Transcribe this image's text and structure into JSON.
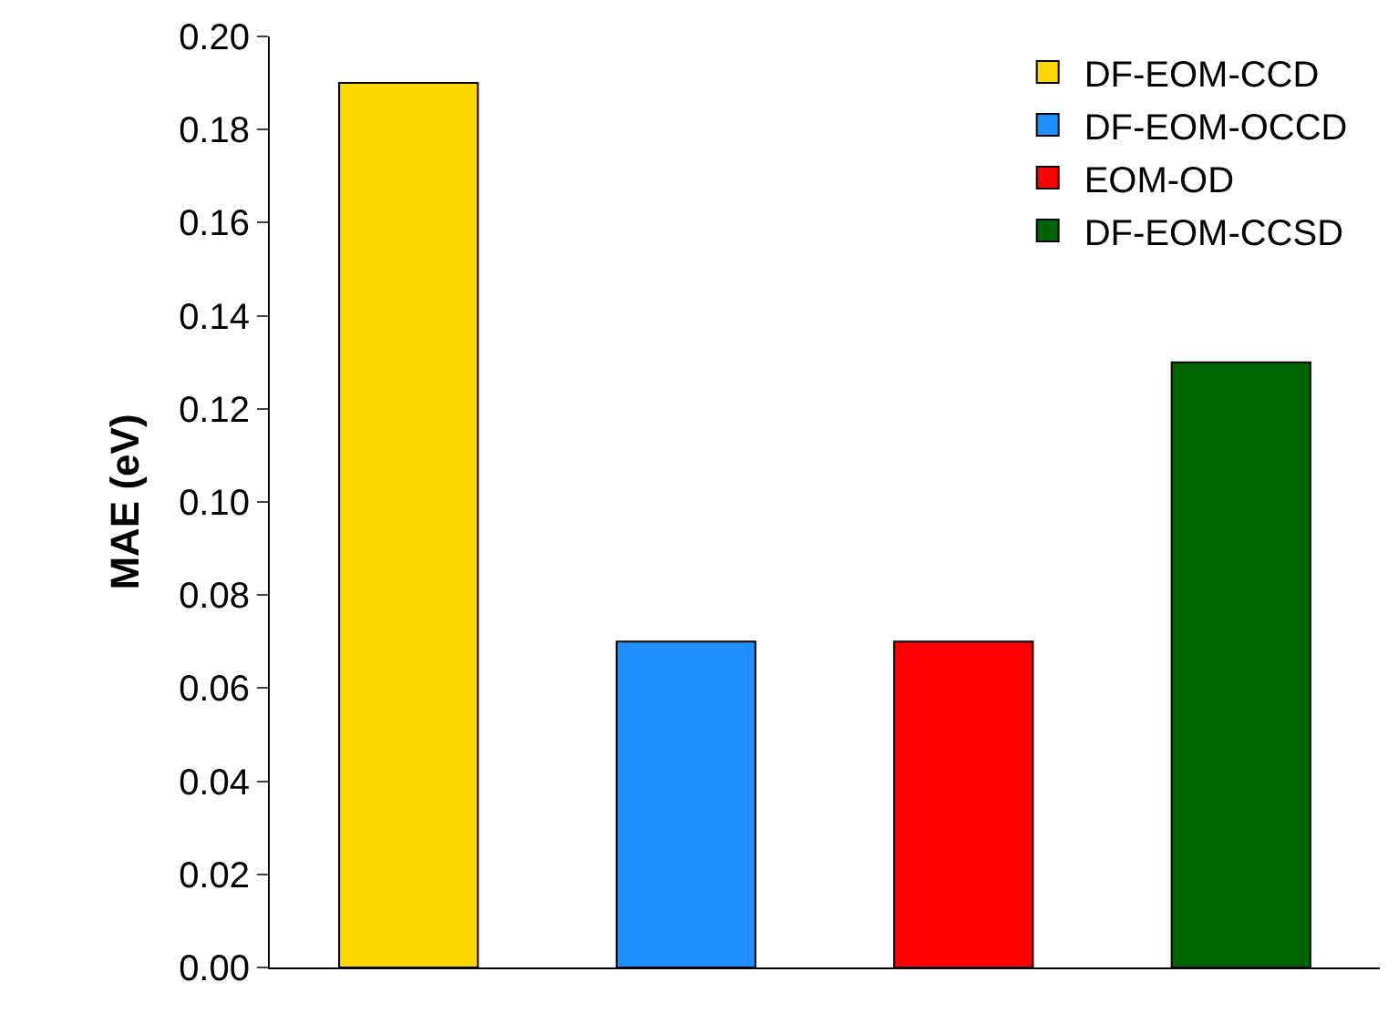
{
  "chart_data": {
    "type": "bar",
    "ylabel": "MAE (eV)",
    "categories": [
      null,
      null,
      null,
      null
    ],
    "series": [
      {
        "name": "DF-EOM-CCD",
        "color": "#ffd700",
        "values": [
          0.19,
          null,
          null,
          null
        ]
      },
      {
        "name": "DF-EOM-OCCD",
        "color": "#1e90ff",
        "values": [
          null,
          0.07,
          null,
          null
        ]
      },
      {
        "name": "EOM-OD",
        "color": "#ff0000",
        "values": [
          null,
          null,
          0.07,
          null
        ]
      },
      {
        "name": "DF-EOM-CCSD",
        "color": "#006400",
        "values": [
          null,
          null,
          null,
          0.13
        ]
      }
    ],
    "ylim": [
      0,
      0.2
    ],
    "yticks": [
      {
        "value": 0,
        "label": "0.00"
      },
      {
        "value": 0.02,
        "label": "0.02"
      },
      {
        "value": 0.04,
        "label": "0.04"
      },
      {
        "value": 0.06,
        "label": "0.06"
      },
      {
        "value": 0.08,
        "label": "0.08"
      },
      {
        "value": 0.1,
        "label": "0.10"
      },
      {
        "value": 0.12,
        "label": "0.12"
      },
      {
        "value": 0.14,
        "label": "0.14"
      },
      {
        "value": 0.16,
        "label": "0.16"
      },
      {
        "value": 0.18,
        "label": "0.18"
      },
      {
        "value": 0.2,
        "label": "0.20"
      }
    ],
    "legend": "top right",
    "grid": false,
    "tick_labels": "y"
  }
}
